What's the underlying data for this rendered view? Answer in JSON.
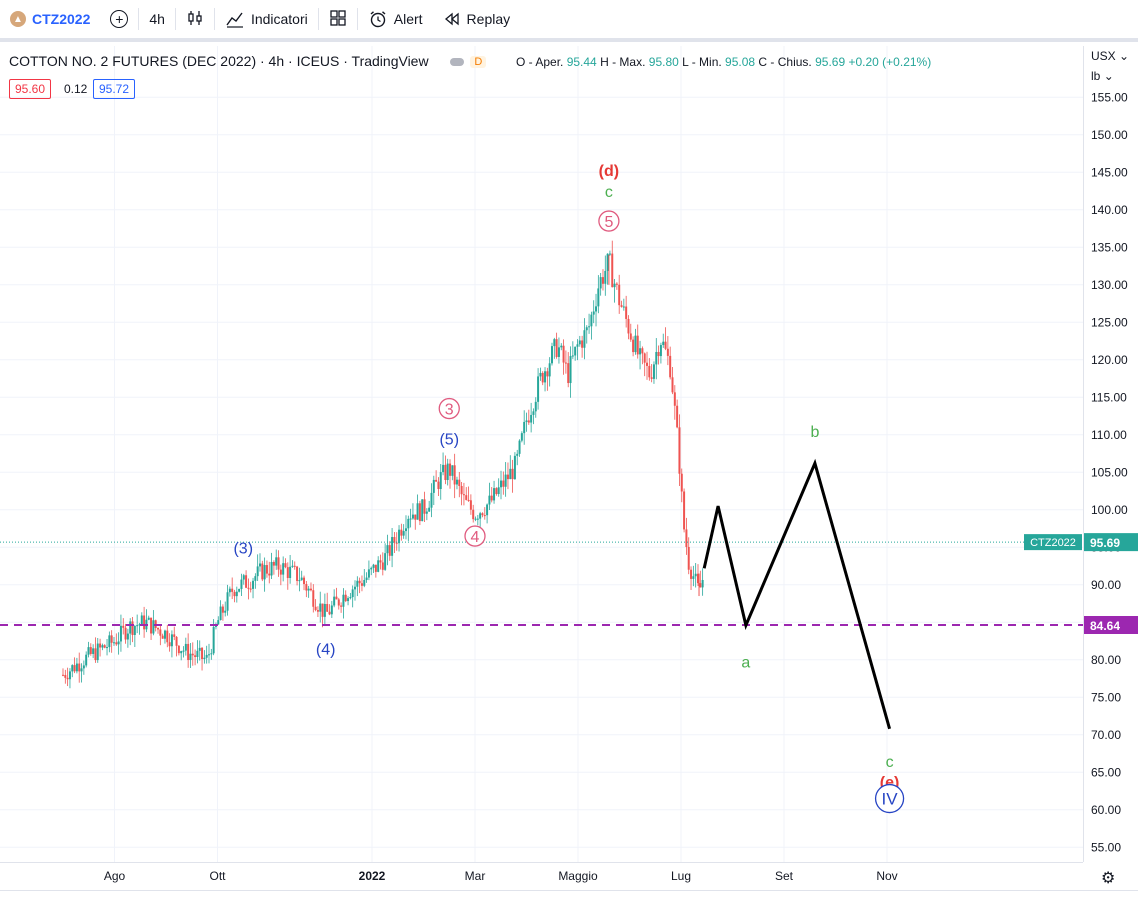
{
  "toolbar": {
    "symbol": "CTZ2022",
    "interval": "4h",
    "indicators_label": "Indicatori",
    "alert_label": "Alert",
    "replay_label": "Replay"
  },
  "legend": {
    "title": "COTTON NO. 2 FUTURES (DEC 2022) · 4h · ICEUS · TradingView",
    "delay_badge": "D",
    "open_label": "O - Aper.",
    "open": "95.44",
    "high_label": "H - Max.",
    "high": "95.80",
    "low_label": "L - Min.",
    "low": "95.08",
    "close_label": "C - Chius.",
    "close": "95.69",
    "change": "+0.20 (+0.21%)",
    "bid": "95.60",
    "spread": "0.12",
    "ask": "95.72"
  },
  "axis": {
    "currency": "USX",
    "unit": "lb"
  },
  "colors": {
    "up": "#26a69a",
    "down": "#ef5350",
    "hline": "#9c27b0",
    "wave_green": "#4caf50",
    "wave_red": "#e53935",
    "wave_blue": "#2745c4",
    "wave_pink": "#e05b7f",
    "projection": "#000000"
  },
  "chart_data": {
    "type": "candlestick",
    "symbol": "CTZ2022",
    "timeframe": "4h",
    "y_range": [
      51,
      159
    ],
    "y_ticks": [
      55,
      60,
      65,
      70,
      75,
      80,
      85,
      90,
      95,
      100,
      105,
      110,
      115,
      120,
      125,
      130,
      135,
      140,
      145,
      150,
      155
    ],
    "x_ticks": [
      {
        "label": "Ago",
        "t": 1.0
      },
      {
        "label": "Ott",
        "t": 3.0
      },
      {
        "label": "2022",
        "t": 6.0
      },
      {
        "label": "Mar",
        "t": 8.0
      },
      {
        "label": "Maggio",
        "t": 10.0
      },
      {
        "label": "Lug",
        "t": 12.0
      },
      {
        "label": "Set",
        "t": 14.0
      },
      {
        "label": "Nov",
        "t": 16.0
      }
    ],
    "price_path": [
      [
        0.0,
        78.0
      ],
      [
        0.5,
        80.5
      ],
      [
        1.0,
        82.5
      ],
      [
        1.3,
        84.5
      ],
      [
        1.6,
        85.0
      ],
      [
        2.0,
        83.5
      ],
      [
        2.4,
        81.0
      ],
      [
        2.8,
        80.0
      ],
      [
        3.0,
        85.0
      ],
      [
        3.3,
        89.5
      ],
      [
        3.6,
        90.5
      ],
      [
        3.9,
        92.0
      ],
      [
        4.2,
        92.5
      ],
      [
        4.6,
        91.0
      ],
      [
        5.0,
        87.0
      ],
      [
        5.1,
        86.0
      ],
      [
        5.5,
        89.0
      ],
      [
        5.9,
        91.0
      ],
      [
        6.3,
        94.0
      ],
      [
        6.7,
        99.5
      ],
      [
        7.0,
        100.0
      ],
      [
        7.3,
        104.0
      ],
      [
        7.5,
        105.5
      ],
      [
        7.8,
        101.0
      ],
      [
        8.0,
        99.5
      ],
      [
        8.3,
        101.0
      ],
      [
        8.5,
        103.0
      ],
      [
        8.8,
        106.0
      ],
      [
        9.0,
        112.0
      ],
      [
        9.3,
        118.0
      ],
      [
        9.6,
        122.0
      ],
      [
        9.8,
        118.0
      ],
      [
        10.0,
        122.0
      ],
      [
        10.2,
        124.0
      ],
      [
        10.4,
        130.0
      ],
      [
        10.6,
        133.0
      ],
      [
        10.8,
        128.0
      ],
      [
        11.0,
        124.0
      ],
      [
        11.2,
        120.0
      ],
      [
        11.4,
        118.0
      ],
      [
        11.6,
        123.0
      ],
      [
        11.8,
        119.0
      ],
      [
        11.95,
        108.0
      ],
      [
        12.05,
        98.0
      ],
      [
        12.15,
        93.0
      ],
      [
        12.25,
        91.0
      ],
      [
        12.35,
        89.0
      ],
      [
        12.45,
        91.5
      ]
    ],
    "high_point": {
      "t": 10.6,
      "price": 134.0
    },
    "low_point": {
      "t": 12.35,
      "price": 88.5
    },
    "current_price": {
      "value": 95.69,
      "label": "CTZ2022"
    },
    "horizontal_line": {
      "value": 84.64,
      "style": "dashed"
    },
    "projection": [
      [
        12.45,
        92.2
      ],
      [
        12.72,
        100.5
      ],
      [
        13.26,
        84.6
      ],
      [
        14.6,
        106.2
      ],
      [
        16.05,
        70.8
      ]
    ],
    "wave_labels": [
      {
        "text": "(3)",
        "t": 3.5,
        "price": 95.0,
        "color": "blue"
      },
      {
        "text": "(4)",
        "t": 5.1,
        "price": 81.5,
        "color": "blue"
      },
      {
        "text": "(5)",
        "t": 7.5,
        "price": 109.5,
        "color": "blue"
      },
      {
        "text": "3",
        "t": 7.5,
        "price": 113.5,
        "color": "pink",
        "circled": true
      },
      {
        "text": "4",
        "t": 8.0,
        "price": 96.5,
        "color": "pink",
        "circled": true
      },
      {
        "text": "5",
        "t": 10.6,
        "price": 138.5,
        "color": "pink",
        "circled": true
      },
      {
        "text": "c",
        "t": 10.6,
        "price": 142.5,
        "color": "green"
      },
      {
        "text": "(d)",
        "t": 10.6,
        "price": 145.3,
        "color": "red"
      },
      {
        "text": "a",
        "t": 13.26,
        "price": 79.8,
        "color": "green"
      },
      {
        "text": "b",
        "t": 14.6,
        "price": 110.5,
        "color": "green"
      },
      {
        "text": "c",
        "t": 16.05,
        "price": 66.5,
        "color": "green"
      },
      {
        "text": "(e)",
        "t": 16.05,
        "price": 63.8,
        "color": "red"
      },
      {
        "text": "IV",
        "t": 16.05,
        "price": 61.5,
        "color": "blue",
        "circled": true
      }
    ]
  }
}
